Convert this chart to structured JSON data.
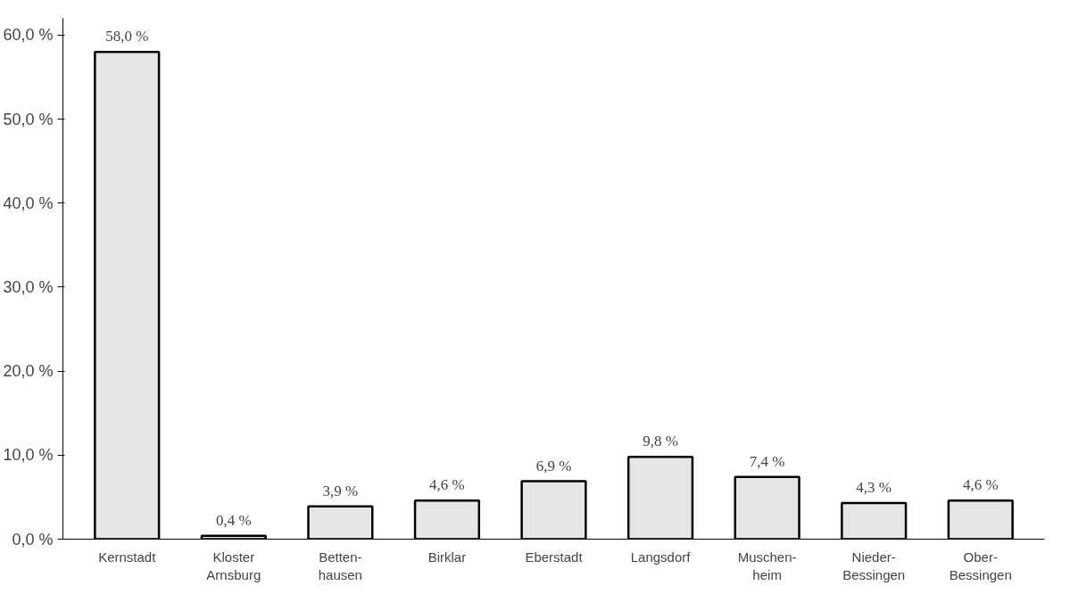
{
  "chart_data": {
    "type": "bar",
    "categories": [
      "Kernstadt",
      "Kloster\nArnsburg",
      "Betten-\nhausen",
      "Birklar",
      "Eberstadt",
      "Langsdorf",
      "Muschen-\nheim",
      "Nieder-\nBessingen",
      "Ober-\nBessingen"
    ],
    "values": [
      58.0,
      0.4,
      3.9,
      4.6,
      6.9,
      9.8,
      7.4,
      4.3,
      4.6
    ],
    "value_labels": [
      "58,0 %",
      "0,4 %",
      "3,9 %",
      "4,6 %",
      "6,9 %",
      "9,8 %",
      "7,4 %",
      "4,3 %",
      "4,6 %"
    ],
    "color": "#e6e6e6",
    "ylim": [
      0,
      62
    ],
    "yticks": [
      {
        "value": 0,
        "label": "0,0 %"
      },
      {
        "value": 10,
        "label": "10,0 %"
      },
      {
        "value": 20,
        "label": "20,0 %"
      },
      {
        "value": 30,
        "label": "30,0 %"
      },
      {
        "value": 40,
        "label": "40,0 %"
      },
      {
        "value": 50,
        "label": "50,0 %"
      },
      {
        "value": 60,
        "label": "60,0 %"
      }
    ],
    "grid": false
  }
}
